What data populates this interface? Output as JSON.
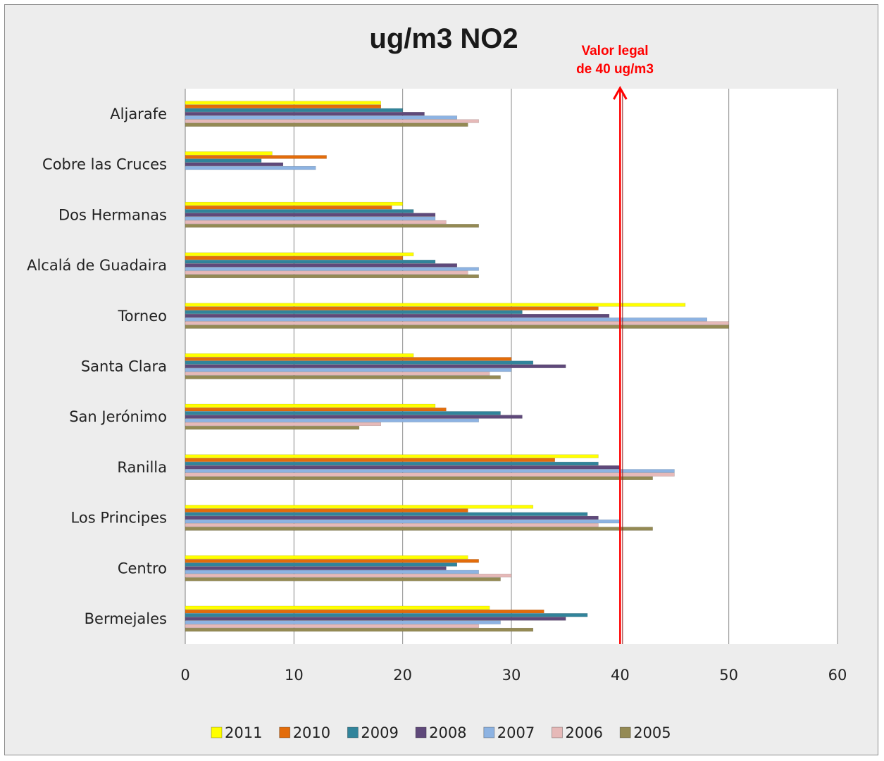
{
  "chart_data": {
    "type": "bar",
    "orientation": "horizontal",
    "title": "ug/m3 NO2",
    "categories": [
      "Aljarafe",
      "Cobre las Cruces",
      "Dos Hermanas",
      "Alcalá de Guadaira",
      "Torneo",
      "Santa Clara",
      "San Jerónimo",
      "Ranilla",
      "Los Principes",
      "Centro",
      "Bermejales"
    ],
    "xlim": [
      0,
      60
    ],
    "xticks": [
      0,
      10,
      20,
      30,
      40,
      50,
      60
    ],
    "grid": true,
    "legend_position": "bottom",
    "series": [
      {
        "name": "2011",
        "color": "#ffff00",
        "values": [
          18,
          8,
          20,
          21,
          46,
          21,
          23,
          38,
          32,
          26,
          28
        ]
      },
      {
        "name": "2010",
        "color": "#e36c0a",
        "values": [
          18,
          13,
          19,
          20,
          38,
          30,
          24,
          34,
          26,
          27,
          33
        ]
      },
      {
        "name": "2009",
        "color": "#31849b",
        "values": [
          20,
          7,
          21,
          23,
          31,
          32,
          29,
          38,
          37,
          25,
          37
        ]
      },
      {
        "name": "2008",
        "color": "#5f497a",
        "values": [
          22,
          9,
          23,
          25,
          39,
          35,
          31,
          40,
          38,
          24,
          35
        ]
      },
      {
        "name": "2007",
        "color": "#8db3e2",
        "values": [
          25,
          12,
          23,
          27,
          48,
          30,
          27,
          45,
          40,
          27,
          29
        ]
      },
      {
        "name": "2006",
        "color": "#e6b9b8",
        "values": [
          27,
          null,
          24,
          26,
          50,
          28,
          18,
          45,
          38,
          30,
          27
        ]
      },
      {
        "name": "2005",
        "color": "#948a54",
        "values": [
          26,
          null,
          27,
          27,
          50,
          29,
          16,
          43,
          43,
          29,
          32
        ]
      }
    ],
    "reference_line": {
      "value": 40,
      "color": "#ff0000",
      "label_line1": "Valor legal",
      "label_line2": "de 40 ug/m3"
    }
  }
}
